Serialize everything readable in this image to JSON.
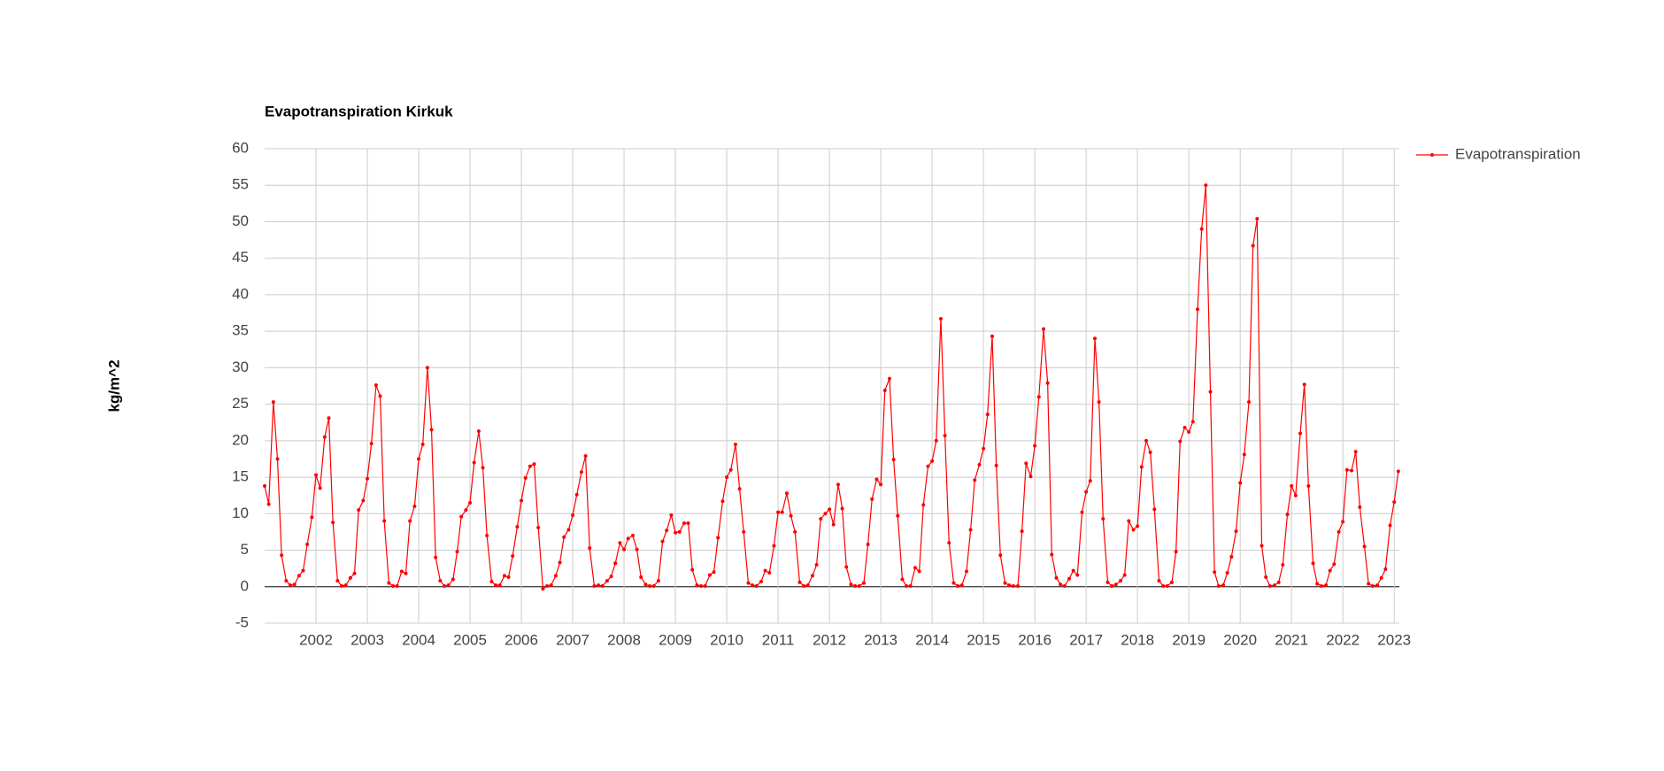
{
  "chart_data": {
    "type": "line",
    "title": "Evapotranspiration Kirkuk",
    "y_label": "kg/m^2",
    "xlim": [
      2001,
      2023.1
    ],
    "xticks": [
      2002,
      2003,
      2004,
      2005,
      2006,
      2007,
      2008,
      2009,
      2010,
      2011,
      2012,
      2013,
      2014,
      2015,
      2016,
      2017,
      2018,
      2019,
      2020,
      2021,
      2022,
      2023
    ],
    "ylim": [
      -5,
      60
    ],
    "yticks": [
      -5,
      0,
      5,
      10,
      15,
      20,
      25,
      30,
      35,
      40,
      45,
      50,
      55,
      60
    ],
    "grid": true,
    "legend": "right",
    "x": [
      2001,
      2001.08,
      2001.17,
      2001.25,
      2001.33,
      2001.42,
      2001.5,
      2001.58,
      2001.67,
      2001.75,
      2001.83,
      2001.92,
      2002,
      2002.08,
      2002.17,
      2002.25,
      2002.33,
      2002.42,
      2002.5,
      2002.58,
      2002.67,
      2002.75,
      2002.83,
      2002.92,
      2003,
      2003.08,
      2003.17,
      2003.25,
      2003.33,
      2003.42,
      2003.5,
      2003.58,
      2003.67,
      2003.75,
      2003.83,
      2003.92,
      2004,
      2004.08,
      2004.17,
      2004.25,
      2004.33,
      2004.42,
      2004.5,
      2004.58,
      2004.67,
      2004.75,
      2004.83,
      2004.92,
      2005,
      2005.08,
      2005.17,
      2005.25,
      2005.33,
      2005.42,
      2005.5,
      2005.58,
      2005.67,
      2005.75,
      2005.83,
      2005.92,
      2006,
      2006.08,
      2006.17,
      2006.25,
      2006.33,
      2006.42,
      2006.5,
      2006.58,
      2006.67,
      2006.75,
      2006.83,
      2006.92,
      2007,
      2007.08,
      2007.17,
      2007.25,
      2007.33,
      2007.42,
      2007.5,
      2007.58,
      2007.67,
      2007.75,
      2007.83,
      2007.92,
      2008,
      2008.08,
      2008.17,
      2008.25,
      2008.33,
      2008.42,
      2008.5,
      2008.58,
      2008.67,
      2008.75,
      2008.83,
      2008.92,
      2009,
      2009.08,
      2009.17,
      2009.25,
      2009.33,
      2009.42,
      2009.5,
      2009.58,
      2009.67,
      2009.75,
      2009.83,
      2009.92,
      2010,
      2010.08,
      2010.17,
      2010.25,
      2010.33,
      2010.42,
      2010.5,
      2010.58,
      2010.67,
      2010.75,
      2010.83,
      2010.92,
      2011,
      2011.08,
      2011.17,
      2011.25,
      2011.33,
      2011.42,
      2011.5,
      2011.58,
      2011.67,
      2011.75,
      2011.83,
      2011.92,
      2012,
      2012.08,
      2012.17,
      2012.25,
      2012.33,
      2012.42,
      2012.5,
      2012.58,
      2012.67,
      2012.75,
      2012.83,
      2012.92,
      2013,
      2013.08,
      2013.17,
      2013.25,
      2013.33,
      2013.42,
      2013.5,
      2013.58,
      2013.67,
      2013.75,
      2013.83,
      2013.92,
      2014,
      2014.08,
      2014.17,
      2014.25,
      2014.33,
      2014.42,
      2014.5,
      2014.58,
      2014.67,
      2014.75,
      2014.83,
      2014.92,
      2015,
      2015.08,
      2015.17,
      2015.25,
      2015.33,
      2015.42,
      2015.5,
      2015.58,
      2015.67,
      2015.75,
      2015.83,
      2015.92,
      2016,
      2016.08,
      2016.17,
      2016.25,
      2016.33,
      2016.42,
      2016.5,
      2016.58,
      2016.67,
      2016.75,
      2016.83,
      2016.92,
      2017,
      2017.08,
      2017.17,
      2017.25,
      2017.33,
      2017.42,
      2017.5,
      2017.58,
      2017.67,
      2017.75,
      2017.83,
      2017.92,
      2018,
      2018.08,
      2018.17,
      2018.25,
      2018.33,
      2018.42,
      2018.5,
      2018.58,
      2018.67,
      2018.75,
      2018.83,
      2018.92,
      2019,
      2019.08,
      2019.17,
      2019.25,
      2019.33,
      2019.42,
      2019.5,
      2019.58,
      2019.67,
      2019.75,
      2019.83,
      2019.92,
      2020,
      2020.08,
      2020.17,
      2020.25,
      2020.33,
      2020.42,
      2020.5,
      2020.58,
      2020.67,
      2020.75,
      2020.83,
      2020.92,
      2021,
      2021.08,
      2021.17,
      2021.25,
      2021.33,
      2021.42,
      2021.5,
      2021.58,
      2021.67,
      2021.75,
      2021.83,
      2021.92,
      2022,
      2022.08,
      2022.17,
      2022.25,
      2022.33,
      2022.42,
      2022.5,
      2022.58,
      2022.67,
      2022.75,
      2022.83,
      2022.92,
      2023,
      2023.08
    ],
    "series": [
      {
        "name": "Evapotranspiration",
        "color": "#ff0000",
        "values": [
          13.8,
          11.3,
          25.3,
          17.5,
          4.3,
          0.8,
          0.2,
          0.3,
          1.5,
          2.2,
          5.8,
          9.5,
          15.3,
          13.5,
          20.5,
          23.1,
          8.8,
          0.8,
          0.1,
          0.2,
          1.2,
          1.8,
          10.5,
          11.8,
          14.8,
          19.6,
          27.6,
          26.1,
          9.0,
          0.5,
          0.1,
          0.1,
          2.1,
          1.8,
          9.0,
          11.0,
          17.5,
          19.5,
          30.0,
          21.5,
          4.0,
          0.8,
          0.1,
          0.2,
          1.0,
          4.8,
          9.6,
          10.5,
          11.5,
          17.0,
          21.3,
          16.3,
          7.0,
          0.7,
          0.2,
          0.2,
          1.5,
          1.3,
          4.2,
          8.2,
          11.8,
          14.9,
          16.5,
          16.8,
          8.1,
          -0.3,
          0.1,
          0.2,
          1.5,
          3.3,
          6.8,
          7.8,
          9.8,
          12.6,
          15.7,
          17.9,
          5.3,
          0.1,
          0.2,
          0.1,
          0.8,
          1.4,
          3.2,
          6.0,
          5.1,
          6.6,
          7.0,
          5.1,
          1.3,
          0.3,
          0.1,
          0.1,
          0.8,
          6.2,
          7.7,
          9.8,
          7.4,
          7.5,
          8.7,
          8.7,
          2.3,
          0.2,
          0.1,
          0.1,
          1.6,
          2.0,
          6.7,
          11.7,
          15.0,
          16.0,
          19.5,
          13.4,
          7.5,
          0.5,
          0.2,
          0.1,
          0.7,
          2.2,
          1.9,
          5.6,
          10.2,
          10.2,
          12.8,
          9.7,
          7.5,
          0.6,
          0.1,
          0.2,
          1.5,
          3.0,
          9.3,
          10.0,
          10.6,
          8.5,
          14.0,
          10.7,
          2.7,
          0.3,
          0.1,
          0.1,
          0.5,
          5.8,
          12.0,
          14.7,
          14.0,
          26.9,
          28.5,
          17.4,
          9.7,
          1.0,
          0.1,
          0.1,
          2.6,
          2.1,
          11.2,
          16.5,
          17.2,
          20.0,
          36.7,
          20.7,
          6.0,
          0.5,
          0.1,
          0.2,
          2.1,
          7.8,
          14.6,
          16.7,
          18.9,
          23.6,
          34.3,
          16.6,
          4.3,
          0.5,
          0.2,
          0.1,
          0.1,
          7.6,
          16.9,
          15.1,
          19.3,
          26.0,
          35.3,
          27.9,
          4.4,
          1.2,
          0.3,
          0.1,
          1.1,
          2.2,
          1.6,
          10.2,
          13.0,
          14.5,
          34.0,
          25.3,
          9.3,
          0.6,
          0.1,
          0.3,
          0.8,
          1.6,
          9.0,
          7.8,
          8.3,
          16.4,
          20.0,
          18.4,
          10.6,
          0.8,
          0.1,
          0.1,
          0.6,
          4.8,
          19.9,
          21.8,
          21.2,
          22.6,
          38.0,
          49.0,
          55.0,
          26.7,
          2.0,
          0.1,
          0.2,
          1.9,
          4.1,
          7.6,
          14.2,
          18.1,
          25.3,
          46.7,
          50.4,
          5.6,
          1.3,
          0.1,
          0.2,
          0.6,
          3.0,
          9.9,
          13.8,
          12.5,
          21.0,
          27.7,
          13.8,
          3.2,
          0.4,
          0.1,
          0.2,
          2.2,
          3.1,
          7.5,
          8.9,
          16.0,
          15.9,
          18.5,
          10.9,
          5.5,
          0.4,
          0.1,
          0.2,
          1.2,
          2.4,
          8.4,
          11.6,
          15.8
        ]
      }
    ]
  }
}
